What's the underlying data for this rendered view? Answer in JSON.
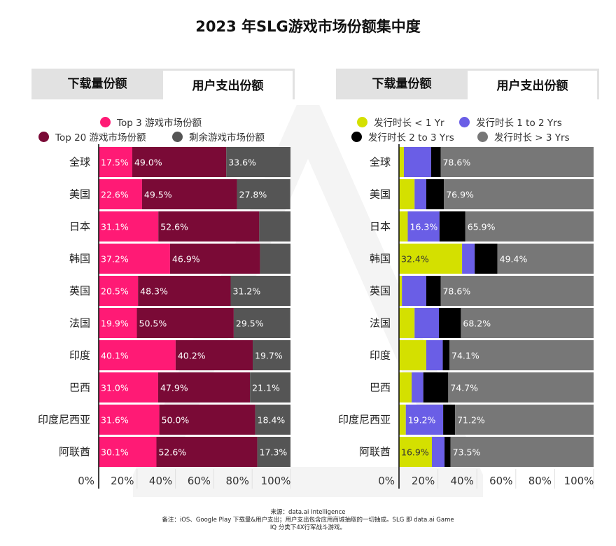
{
  "page": {
    "title": "2023 年SLG游戏市场份额集中度",
    "footnote": {
      "line1": "来源：data.ai Intelligence",
      "line2": "备注：iOS、Google Play 下载量&用户支出；用户支出包含应用商城抽取的一切抽成。SLG 即 data.ai Game",
      "line3": "IQ 分类下4X行军战斗游戏。"
    }
  },
  "left_panel": {
    "tabs": [
      {
        "label": "下载量份额",
        "active": false
      },
      {
        "label": "用户支出份额",
        "active": true
      }
    ],
    "legend": [
      {
        "label": "Top 3 游戏市场份额",
        "color": "#ff1a75"
      },
      {
        "label": "Top 20 游戏市场份额",
        "color": "#7a0a36"
      },
      {
        "label": "剩余游戏市场份额",
        "color": "#555555"
      }
    ]
  },
  "right_panel": {
    "tabs": [
      {
        "label": "下载量份额",
        "active": false
      },
      {
        "label": "用户支出份额",
        "active": true
      }
    ],
    "legend": [
      {
        "label": "发行时长 < 1 Yr",
        "color": "#d4e000"
      },
      {
        "label": "发行时长 1 to 2 Yrs",
        "color": "#6a5ee6"
      },
      {
        "label": "发行时长 2 to 3 Yrs",
        "color": "#000000"
      },
      {
        "label": "发行时长 > 3 Yrs",
        "color": "#777777"
      }
    ]
  },
  "chart_data": [
    {
      "type": "bar",
      "orientation": "horizontal",
      "stacked": true,
      "title": "用户支出份额",
      "categories": [
        "全球",
        "美国",
        "日本",
        "韩国",
        "英国",
        "法国",
        "印度",
        "巴西",
        "印度尼西亚",
        "阿联酋"
      ],
      "series": [
        {
          "name": "Top 3 游戏市场份额",
          "color": "#ff1a75",
          "values": [
            17.5,
            22.6,
            31.1,
            37.2,
            20.5,
            19.9,
            40.1,
            31.0,
            31.6,
            30.1
          ],
          "labels": [
            "17.5%",
            "22.6%",
            "31.1%",
            "37.2%",
            "20.5%",
            "19.9%",
            "40.1%",
            "31.0%",
            "31.6%",
            "30.1%"
          ]
        },
        {
          "name": "Top 20 游戏市场份额",
          "color": "#7a0a36",
          "values": [
            49.0,
            49.5,
            52.6,
            46.9,
            48.3,
            50.5,
            40.2,
            47.9,
            50.0,
            52.6
          ],
          "labels": [
            "49.0%",
            "49.5%",
            "52.6%",
            "46.9%",
            "48.3%",
            "50.5%",
            "40.2%",
            "47.9%",
            "50.0%",
            "52.6%"
          ]
        },
        {
          "name": "剩余游戏市场份额",
          "color": "#555555",
          "values": [
            33.6,
            27.8,
            16.3,
            15.9,
            31.2,
            29.5,
            19.7,
            21.1,
            18.4,
            17.3
          ],
          "labels": [
            "33.6%",
            "27.8%",
            "",
            "",
            "31.2%",
            "29.5%",
            "19.7%",
            "21.1%",
            "18.4%",
            "17.3%"
          ]
        }
      ],
      "xlim": [
        0,
        100
      ],
      "xticks": [
        "0%",
        "20%",
        "40%",
        "60%",
        "80%",
        "100%"
      ],
      "grid": true
    },
    {
      "type": "bar",
      "orientation": "horizontal",
      "stacked": true,
      "title": "用户支出份额",
      "categories": [
        "全球",
        "美国",
        "日本",
        "韩国",
        "英国",
        "法国",
        "印度",
        "巴西",
        "印度尼西亚",
        "阿联酋"
      ],
      "series": [
        {
          "name": "发行时长 < 1 Yr",
          "color": "#d4e000",
          "values": [
            2.5,
            8.0,
            4.5,
            32.4,
            1.5,
            8.0,
            14.0,
            6.5,
            3.5,
            16.9
          ],
          "labels": [
            "",
            "",
            "",
            "32.4%",
            "",
            "",
            "",
            "",
            "",
            "16.9%"
          ]
        },
        {
          "name": "发行时长 1 to 2 Yrs",
          "color": "#6a5ee6",
          "values": [
            14.0,
            6.0,
            16.3,
            6.5,
            12.5,
            12.5,
            8.5,
            6.0,
            19.2,
            6.5
          ],
          "labels": [
            "",
            "",
            "16.3%",
            "",
            "",
            "",
            "",
            "",
            "19.2%",
            ""
          ]
        },
        {
          "name": "发行时长 2 to 3 Yrs",
          "color": "#000000",
          "values": [
            4.9,
            9.1,
            13.3,
            11.7,
            7.4,
            11.3,
            3.4,
            12.8,
            6.1,
            3.1
          ],
          "labels": [
            "",
            "",
            "",
            "",
            "",
            "",
            "",
            "",
            "",
            ""
          ]
        },
        {
          "name": "发行时长 > 3 Yrs",
          "color": "#777777",
          "values": [
            78.6,
            76.9,
            65.9,
            49.4,
            78.6,
            68.2,
            74.1,
            74.7,
            71.2,
            73.5
          ],
          "labels": [
            "78.6%",
            "76.9%",
            "65.9%",
            "49.4%",
            "78.6%",
            "68.2%",
            "74.1%",
            "74.7%",
            "71.2%",
            "73.5%"
          ]
        }
      ],
      "xlim": [
        0,
        100
      ],
      "xticks": [
        "0%",
        "20%",
        "40%",
        "60%",
        "80%",
        "100%"
      ],
      "grid": true
    }
  ]
}
